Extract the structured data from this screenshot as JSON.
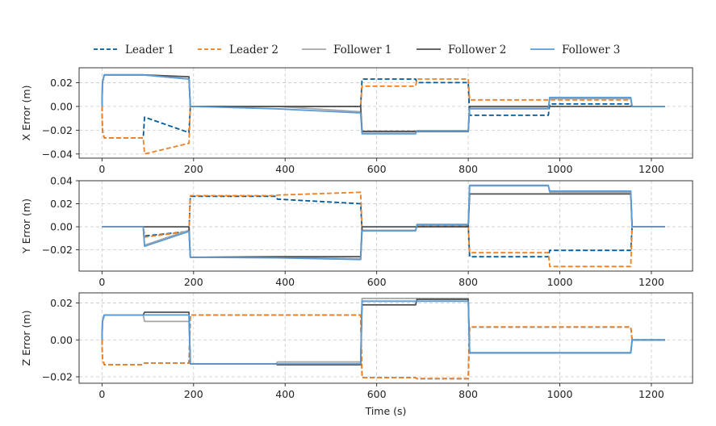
{
  "chart_data": [
    {
      "type": "line",
      "id": "x",
      "ylabel": "X Error (m)",
      "xlabel": "",
      "xlim": [
        -50,
        1290
      ],
      "ylim": [
        -0.0435,
        0.0325
      ],
      "xticks": [
        0,
        200,
        400,
        600,
        800,
        1000,
        1200
      ],
      "yticks": [
        -0.04,
        -0.02,
        0.0,
        0.02
      ],
      "ytick_labels": [
        "−0.04",
        "−0.02",
        "0.00",
        "0.02"
      ],
      "grid": true,
      "series": [
        {
          "name": "Leader 1",
          "x": [
            0,
            1,
            5,
            90,
            93,
            190,
            193,
            380,
            565,
            568,
            685,
            688,
            800,
            803,
            975,
            978,
            1155,
            1158,
            1230
          ],
          "y": [
            0,
            -0.02,
            -0.0265,
            -0.0265,
            -0.009,
            -0.022,
            0,
            0,
            0,
            0.023,
            0.023,
            0.02,
            0.02,
            -0.0075,
            -0.0075,
            0.002,
            0.002,
            0,
            0
          ]
        },
        {
          "name": "Leader 2",
          "x": [
            0,
            1,
            5,
            90,
            93,
            190,
            193,
            380,
            565,
            568,
            685,
            688,
            800,
            803,
            975,
            978,
            1155,
            1158,
            1230
          ],
          "y": [
            0,
            -0.02,
            -0.0265,
            -0.0265,
            -0.04,
            -0.031,
            0,
            0,
            0,
            0.017,
            0.017,
            0.023,
            0.023,
            0.0055,
            0.0055,
            0.0055,
            0.0055,
            0,
            0
          ]
        },
        {
          "name": "Follower 1",
          "x": [
            0,
            1,
            5,
            90,
            190,
            193,
            380,
            565,
            568,
            685,
            688,
            800,
            803,
            975,
            978,
            1155,
            1158,
            1230
          ],
          "y": [
            0,
            0.02,
            0.0265,
            0.0265,
            0.023,
            0,
            0,
            -0.0045,
            -0.0215,
            -0.0215,
            -0.0205,
            -0.0205,
            -0.0015,
            -0.0015,
            0.0065,
            0.0065,
            0,
            0
          ]
        },
        {
          "name": "Follower 2",
          "x": [
            0,
            1,
            5,
            90,
            190,
            193,
            380,
            565,
            568,
            685,
            688,
            800,
            803,
            975,
            978,
            1155,
            1158,
            1230
          ],
          "y": [
            0,
            0.02,
            0.0265,
            0.0265,
            0.025,
            0,
            0,
            0,
            -0.021,
            -0.021,
            -0.021,
            -0.021,
            0,
            0,
            0,
            0,
            0,
            0
          ]
        },
        {
          "name": "Follower 3",
          "x": [
            0,
            1,
            5,
            90,
            190,
            193,
            380,
            565,
            568,
            685,
            688,
            800,
            803,
            975,
            978,
            1155,
            1158,
            1230
          ],
          "y": [
            0,
            0.02,
            0.0265,
            0.0265,
            0.023,
            0,
            -0.002,
            -0.0055,
            -0.023,
            -0.023,
            -0.0205,
            -0.0205,
            -0.002,
            -0.002,
            0.0075,
            0.0075,
            0,
            0
          ]
        }
      ]
    },
    {
      "type": "line",
      "id": "y",
      "ylabel": "Y Error (m)",
      "xlabel": "",
      "xlim": [
        -50,
        1290
      ],
      "ylim": [
        -0.0385,
        0.04
      ],
      "xticks": [
        0,
        200,
        400,
        600,
        800,
        1000,
        1200
      ],
      "yticks": [
        -0.02,
        0.0,
        0.02,
        0.04
      ],
      "ytick_labels": [
        "−0.02",
        "0.00",
        "0.02",
        "0.04"
      ],
      "grid": true,
      "series": [
        {
          "name": "Leader 1",
          "x": [
            0,
            90,
            93,
            190,
            193,
            380,
            383,
            565,
            568,
            685,
            688,
            800,
            803,
            975,
            978,
            1155,
            1158,
            1230
          ],
          "y": [
            0,
            0,
            -0.008,
            -0.004,
            0.0265,
            0.0265,
            0.024,
            0.02,
            -0.003,
            -0.003,
            0.001,
            0.001,
            -0.026,
            -0.026,
            -0.0205,
            -0.0205,
            0,
            0
          ]
        },
        {
          "name": "Leader 2",
          "x": [
            0,
            90,
            93,
            190,
            193,
            380,
            383,
            565,
            568,
            685,
            688,
            800,
            803,
            975,
            978,
            1155,
            1158,
            1230
          ],
          "y": [
            0,
            0,
            -0.009,
            -0.004,
            0.027,
            0.027,
            0.0275,
            0.03,
            -0.003,
            -0.003,
            0.001,
            0.001,
            -0.0225,
            -0.0225,
            -0.0345,
            -0.0345,
            0,
            0
          ]
        },
        {
          "name": "Follower 1",
          "x": [
            0,
            90,
            93,
            190,
            193,
            380,
            565,
            568,
            685,
            688,
            800,
            803,
            975,
            978,
            1155,
            1158,
            1230
          ],
          "y": [
            0,
            0,
            -0.016,
            -0.003,
            -0.0265,
            -0.0265,
            -0.028,
            -0.003,
            -0.003,
            0.0015,
            0.0015,
            0.0355,
            0.0355,
            0.03,
            0.03,
            0,
            0
          ]
        },
        {
          "name": "Follower 2",
          "x": [
            0,
            90,
            93,
            190,
            193,
            380,
            565,
            568,
            685,
            688,
            800,
            803,
            975,
            978,
            1155,
            1158,
            1230
          ],
          "y": [
            0,
            0,
            0,
            0,
            -0.0265,
            -0.026,
            -0.026,
            0,
            0,
            0,
            0,
            0.0285,
            0.0285,
            0.0285,
            0.0285,
            0,
            0
          ]
        },
        {
          "name": "Follower 3",
          "x": [
            0,
            90,
            93,
            190,
            193,
            380,
            565,
            568,
            685,
            688,
            800,
            803,
            975,
            978,
            1155,
            1158,
            1230
          ],
          "y": [
            0,
            0,
            -0.017,
            -0.004,
            -0.0265,
            -0.027,
            -0.0285,
            -0.0035,
            -0.0035,
            0.002,
            0.002,
            0.036,
            0.036,
            0.031,
            0.031,
            0,
            0
          ]
        }
      ]
    },
    {
      "type": "line",
      "id": "z",
      "ylabel": "Z Error (m)",
      "xlabel": "Time (s)",
      "xlim": [
        -50,
        1290
      ],
      "ylim": [
        -0.0235,
        0.0255
      ],
      "xticks": [
        0,
        200,
        400,
        600,
        800,
        1000,
        1200
      ],
      "yticks": [
        -0.02,
        0.0,
        0.02
      ],
      "ytick_labels": [
        "−0.02",
        "0.00",
        "0.02"
      ],
      "grid": true,
      "series": [
        {
          "name": "Leader 1",
          "x": [
            0,
            1,
            5,
            90,
            93,
            190,
            193,
            380,
            383,
            565,
            568,
            685,
            688,
            800,
            803,
            975,
            978,
            1155,
            1158,
            1230
          ],
          "y": [
            0,
            -0.01,
            -0.0135,
            -0.0135,
            -0.0125,
            -0.0125,
            0.0135,
            0.0135,
            0.0135,
            0.0135,
            -0.0205,
            -0.0205,
            -0.021,
            -0.021,
            0.007,
            0.007,
            0.007,
            0.007,
            0,
            0
          ]
        },
        {
          "name": "Leader 2",
          "x": [
            0,
            1,
            5,
            90,
            93,
            190,
            193,
            380,
            383,
            565,
            568,
            685,
            688,
            800,
            803,
            975,
            978,
            1155,
            1158,
            1230
          ],
          "y": [
            0,
            -0.01,
            -0.0135,
            -0.0135,
            -0.0125,
            -0.0125,
            0.0135,
            0.0135,
            0.0135,
            0.0135,
            -0.0205,
            -0.0205,
            -0.021,
            -0.021,
            0.007,
            0.007,
            0.007,
            0.007,
            0,
            0
          ]
        },
        {
          "name": "Follower 1",
          "x": [
            0,
            1,
            5,
            90,
            93,
            190,
            193,
            380,
            383,
            565,
            568,
            685,
            688,
            800,
            803,
            975,
            978,
            1155,
            1158,
            1230
          ],
          "y": [
            0,
            0.01,
            0.0135,
            0.0135,
            0.01,
            0.01,
            -0.013,
            -0.013,
            -0.012,
            -0.012,
            0.0225,
            0.0225,
            0.0225,
            0.0225,
            -0.007,
            -0.007,
            -0.007,
            -0.007,
            0,
            0
          ]
        },
        {
          "name": "Follower 2",
          "x": [
            0,
            1,
            5,
            90,
            93,
            190,
            193,
            380,
            383,
            565,
            568,
            685,
            688,
            800,
            803,
            975,
            978,
            1155,
            1158,
            1230
          ],
          "y": [
            0,
            0.01,
            0.0135,
            0.0135,
            0.015,
            0.015,
            -0.013,
            -0.013,
            -0.0135,
            -0.0135,
            0.019,
            0.019,
            0.022,
            0.022,
            -0.007,
            -0.007,
            -0.007,
            -0.007,
            0,
            0
          ]
        },
        {
          "name": "Follower 3",
          "x": [
            0,
            1,
            5,
            90,
            93,
            190,
            193,
            380,
            383,
            565,
            568,
            685,
            688,
            800,
            803,
            975,
            978,
            1155,
            1158,
            1230
          ],
          "y": [
            0,
            0.01,
            0.0135,
            0.0135,
            0.0135,
            0.0135,
            -0.013,
            -0.013,
            -0.013,
            -0.013,
            0.021,
            0.021,
            0.021,
            0.021,
            -0.007,
            -0.007,
            -0.007,
            -0.007,
            0,
            0
          ]
        }
      ]
    }
  ],
  "legend": {
    "placement": "top",
    "entries": [
      {
        "label": "Leader 1",
        "color": "#005a9c",
        "dashed": true
      },
      {
        "label": "Leader 2",
        "color": "#f28020",
        "dashed": true
      },
      {
        "label": "Follower 1",
        "color": "#a6a6a6",
        "dashed": false
      },
      {
        "label": "Follower 2",
        "color": "#505050",
        "dashed": false
      },
      {
        "label": "Follower 3",
        "color": "#5b9bd5",
        "dashed": false
      }
    ]
  }
}
